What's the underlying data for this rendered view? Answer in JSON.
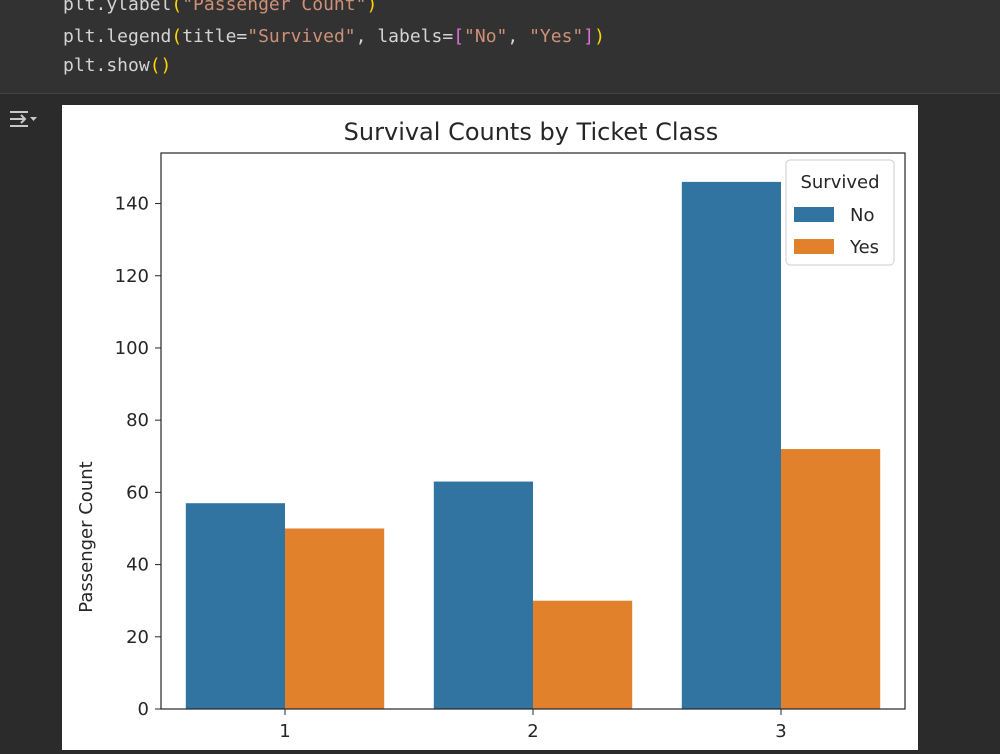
{
  "code": {
    "line1": {
      "fn": "plt.ylabel",
      "open": "(",
      "arg": "\"Passenger Count\"",
      "close": ")"
    },
    "line2": {
      "fn": "plt.legend",
      "open": "(",
      "kw1": "title",
      "eq1": "=",
      "arg1": "\"Survived\"",
      "sep": ", ",
      "kw2": "labels",
      "eq2": "=",
      "lb": "[",
      "arg2": "\"No\"",
      "comma": ", ",
      "arg3": "\"Yes\"",
      "rb": "]",
      "close": ")"
    },
    "line3": {
      "fn": "plt.show",
      "parens": "()"
    }
  },
  "output": {
    "icon": "output-collapse-icon"
  },
  "chart_data": {
    "type": "bar",
    "title": "Survival Counts by Ticket Class",
    "xlabel": "",
    "ylabel": "Passenger Count",
    "categories": [
      "1",
      "2",
      "3"
    ],
    "series": [
      {
        "name": "No",
        "values": [
          57,
          63,
          146
        ],
        "color": "#3274a1"
      },
      {
        "name": "Yes",
        "values": [
          50,
          30,
          72
        ],
        "color": "#e1812c"
      }
    ],
    "ylim": [
      0,
      154
    ],
    "yticks": [
      0,
      20,
      40,
      60,
      80,
      100,
      120,
      140
    ],
    "legend": {
      "title": "Survived",
      "placement": "top-right"
    },
    "grid": false
  }
}
